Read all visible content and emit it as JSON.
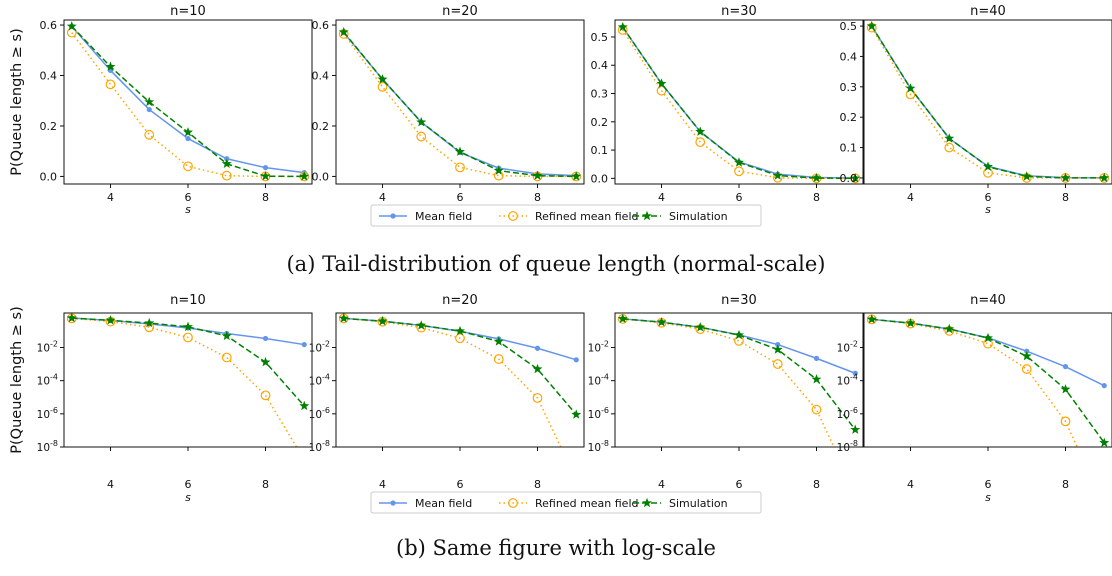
{
  "figure": {
    "caption_a": "(a) Tail-distribution of queue length (normal-scale)",
    "caption_b": "(b) Same figure with log-scale"
  },
  "colors": {
    "mean_field": "#6495ED",
    "refined": "#FFA500",
    "simulation": "#008000"
  },
  "chart_data": [
    {
      "type": "line",
      "scale": "linear",
      "ylabel": "P(Queue length ≥ s)",
      "xlabel": "s",
      "legend": {
        "placement": "bottom-center",
        "entries": [
          "Mean field",
          "Refined mean field",
          "Simulation"
        ]
      },
      "panels": [
        {
          "title": "n=10",
          "xlim": [
            2.8,
            9.2
          ],
          "ylim": [
            -0.03,
            0.62
          ],
          "xticks": [
            4,
            6,
            8
          ],
          "yticks": [
            0.0,
            0.2,
            0.4,
            0.6
          ],
          "ytick_labels": [
            "0.0",
            "0.2",
            "0.4",
            "0.6"
          ],
          "x": [
            3,
            4,
            5,
            6,
            7,
            8,
            9
          ],
          "series": [
            {
              "name": "Mean field",
              "values": [
                0.595,
                0.42,
                0.265,
                0.15,
                0.07,
                0.035,
                0.015
              ]
            },
            {
              "name": "Refined mean field",
              "values": [
                0.57,
                0.365,
                0.165,
                0.04,
                0.003,
                0.0,
                0.0
              ]
            },
            {
              "name": "Simulation",
              "values": [
                0.595,
                0.435,
                0.295,
                0.175,
                0.05,
                0.001,
                0.0
              ]
            }
          ]
        },
        {
          "title": "n=20",
          "xlim": [
            2.8,
            9.2
          ],
          "ylim": [
            -0.03,
            0.62
          ],
          "xticks": [
            4,
            6,
            8
          ],
          "yticks": [
            0.0,
            0.2,
            0.4,
            0.6
          ],
          "ytick_labels": [
            "0.0",
            "0.2",
            "0.4",
            "0.6"
          ],
          "x": [
            3,
            4,
            5,
            6,
            7,
            8,
            9
          ],
          "series": [
            {
              "name": "Mean field",
              "values": [
                0.57,
                0.385,
                0.215,
                0.095,
                0.033,
                0.01,
                0.003
              ]
            },
            {
              "name": "Refined mean field",
              "values": [
                0.565,
                0.355,
                0.158,
                0.036,
                0.003,
                0.0,
                0.0
              ]
            },
            {
              "name": "Simulation",
              "values": [
                0.572,
                0.385,
                0.215,
                0.098,
                0.023,
                0.003,
                0.0
              ]
            }
          ]
        },
        {
          "title": "n=30",
          "xlim": [
            2.8,
            9.2
          ],
          "ylim": [
            -0.02,
            0.56
          ],
          "xticks": [
            4,
            6,
            8
          ],
          "yticks": [
            0.0,
            0.1,
            0.2,
            0.3,
            0.4,
            0.5
          ],
          "ytick_labels": [
            "0.0",
            "0.1",
            "0.2",
            "0.3",
            "0.4",
            "0.5"
          ],
          "x": [
            3,
            4,
            5,
            6,
            7,
            8,
            9
          ],
          "series": [
            {
              "name": "Mean field",
              "values": [
                0.535,
                0.335,
                0.165,
                0.058,
                0.015,
                0.003,
                0.001
              ]
            },
            {
              "name": "Refined mean field",
              "values": [
                0.525,
                0.31,
                0.128,
                0.025,
                0.002,
                0.0,
                0.0
              ]
            },
            {
              "name": "Simulation",
              "values": [
                0.535,
                0.335,
                0.165,
                0.056,
                0.01,
                0.001,
                0.0
              ]
            }
          ]
        },
        {
          "title": "n=40",
          "xlim": [
            2.8,
            9.2
          ],
          "ylim": [
            -0.02,
            0.52
          ],
          "xticks": [
            4,
            6,
            8
          ],
          "yticks": [
            0.0,
            0.1,
            0.2,
            0.3,
            0.4,
            0.5
          ],
          "ytick_labels": [
            "0.0",
            "0.1",
            "0.2",
            "0.3",
            "0.4",
            "0.5"
          ],
          "x": [
            3,
            4,
            5,
            6,
            7,
            8,
            9
          ],
          "series": [
            {
              "name": "Mean field",
              "values": [
                0.5,
                0.295,
                0.13,
                0.038,
                0.007,
                0.001,
                0.0
              ]
            },
            {
              "name": "Refined mean field",
              "values": [
                0.495,
                0.275,
                0.1,
                0.017,
                0.0,
                0.0,
                0.0
              ]
            },
            {
              "name": "Simulation",
              "values": [
                0.5,
                0.295,
                0.13,
                0.037,
                0.005,
                0.0,
                0.0
              ]
            }
          ]
        }
      ]
    },
    {
      "type": "line",
      "scale": "log",
      "ylabel": "P(Queue length ≥ s)",
      "xlabel": "s",
      "legend": {
        "placement": "bottom-center",
        "entries": [
          "Mean field",
          "Refined mean field",
          "Simulation"
        ]
      },
      "panels": [
        {
          "title": "n=10",
          "xlim": [
            2.8,
            9.2
          ],
          "ylim": [
            1e-08,
            1.2
          ],
          "xticks": [
            4,
            6,
            8
          ],
          "yticks": [
            0.01,
            0.0001,
            1e-06,
            1e-08
          ],
          "ytick_exps": [
            "-2",
            "-4",
            "-6",
            "-8"
          ],
          "x": [
            3,
            4,
            5,
            6,
            7,
            8,
            9
          ],
          "series": [
            {
              "name": "Mean field",
              "values": [
                0.595,
                0.42,
                0.265,
                0.15,
                0.07,
                0.035,
                0.015
              ]
            },
            {
              "name": "Refined mean field",
              "x": [
                3,
                4,
                5,
                6,
                7,
                8,
                8.8
              ],
              "values": [
                0.57,
                0.365,
                0.165,
                0.04,
                0.0025,
                1.3e-05,
                1e-08
              ]
            },
            {
              "name": "Simulation",
              "values": [
                0.595,
                0.435,
                0.295,
                0.175,
                0.05,
                0.0013,
                3e-06
              ]
            }
          ]
        },
        {
          "title": "n=20",
          "xlim": [
            2.8,
            9.2
          ],
          "ylim": [
            1e-08,
            1.2
          ],
          "xticks": [
            4,
            6,
            8
          ],
          "yticks": [
            0.01,
            0.0001,
            1e-06,
            1e-08
          ],
          "ytick_exps": [
            "-2",
            "-4",
            "-6",
            "-8"
          ],
          "x": [
            3,
            4,
            5,
            6,
            7,
            8,
            9
          ],
          "series": [
            {
              "name": "Mean field",
              "values": [
                0.57,
                0.385,
                0.215,
                0.095,
                0.033,
                0.009,
                0.0018
              ]
            },
            {
              "name": "Refined mean field",
              "x": [
                3,
                4,
                5,
                6,
                7,
                8,
                8.6
              ],
              "values": [
                0.565,
                0.355,
                0.158,
                0.036,
                0.002,
                9e-06,
                1e-08
              ]
            },
            {
              "name": "Simulation",
              "values": [
                0.572,
                0.385,
                0.215,
                0.098,
                0.023,
                0.0005,
                9e-07
              ]
            }
          ]
        },
        {
          "title": "n=30",
          "xlim": [
            2.8,
            9.2
          ],
          "ylim": [
            1e-08,
            1.2
          ],
          "xticks": [
            4,
            6,
            8
          ],
          "yticks": [
            0.01,
            0.0001,
            1e-06,
            1e-08
          ],
          "ytick_exps": [
            "-2",
            "-4",
            "-6",
            "-8"
          ],
          "x": [
            3,
            4,
            5,
            6,
            7,
            8,
            9
          ],
          "series": [
            {
              "name": "Mean field",
              "values": [
                0.535,
                0.335,
                0.165,
                0.058,
                0.015,
                0.0022,
                0.00028
              ]
            },
            {
              "name": "Refined mean field",
              "x": [
                3,
                4,
                5,
                6,
                7,
                8,
                8.45
              ],
              "values": [
                0.525,
                0.31,
                0.128,
                0.025,
                0.001,
                1.8e-06,
                1e-08
              ]
            },
            {
              "name": "Simulation",
              "values": [
                0.535,
                0.335,
                0.165,
                0.056,
                0.0075,
                0.00012,
                1.1e-07
              ]
            }
          ]
        },
        {
          "title": "n=40",
          "xlim": [
            2.8,
            9.2
          ],
          "ylim": [
            1e-08,
            1.2
          ],
          "xticks": [
            4,
            6,
            8
          ],
          "yticks": [
            0.01,
            0.0001,
            1e-06,
            1e-08
          ],
          "ytick_exps": [
            "-2",
            "-4",
            "-6",
            "-8"
          ],
          "x": [
            3,
            4,
            5,
            6,
            7,
            8,
            9
          ],
          "series": [
            {
              "name": "Mean field",
              "values": [
                0.5,
                0.295,
                0.13,
                0.038,
                0.006,
                0.0007,
                5e-05
              ]
            },
            {
              "name": "Refined mean field",
              "x": [
                3,
                4,
                5,
                6,
                7,
                8,
                8.3
              ],
              "values": [
                0.495,
                0.275,
                0.1,
                0.017,
                0.0005,
                3.5e-07,
                1e-08
              ]
            },
            {
              "name": "Simulation",
              "values": [
                0.5,
                0.295,
                0.13,
                0.037,
                0.003,
                3e-05,
                1.8e-08
              ]
            }
          ]
        }
      ]
    }
  ]
}
